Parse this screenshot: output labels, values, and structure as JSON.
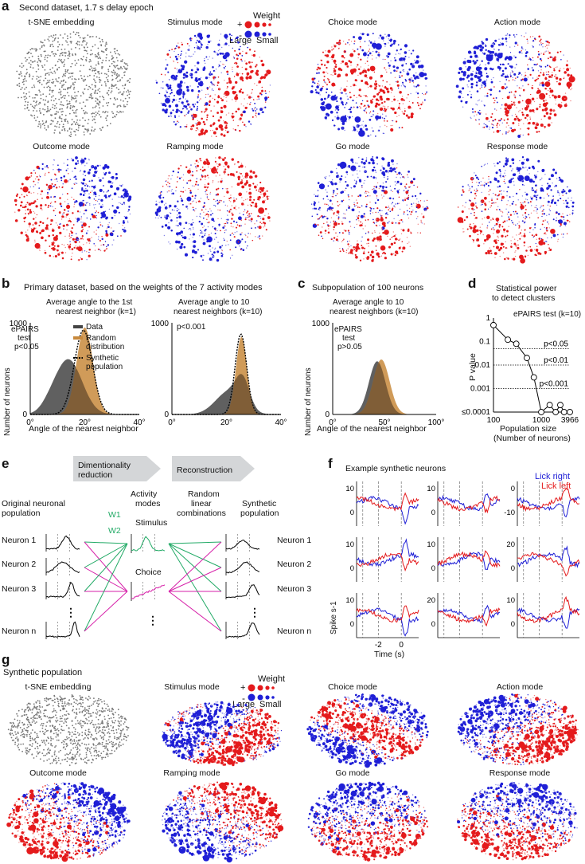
{
  "colors": {
    "red": "#e41a1c",
    "blue": "#1f1fd6",
    "gray": "#777777",
    "tan": "#c8893c",
    "dark": "#444444",
    "green": "#22aa66",
    "magenta": "#d61fa8"
  },
  "panel_a": {
    "label": "a",
    "title": "Second dataset, 1.7 s delay epoch",
    "modes": [
      "t-SNE embedding",
      "Stimulus mode",
      "Choice mode",
      "Action mode",
      "Outcome mode",
      "Ramping mode",
      "Go mode",
      "Response mode"
    ],
    "legend": {
      "title": "Weight",
      "plus": "+",
      "minus": "-",
      "large": "Large",
      "small": "Small"
    }
  },
  "panel_b": {
    "label": "b",
    "title": "Primary dataset, based on the weights of the 7 activity modes",
    "left": {
      "title1": "Average angle to the 1st",
      "title2": "nearest neighbor (k=1)",
      "test1": "ePAIRS",
      "test2": "test",
      "pval": "p<0.05"
    },
    "right": {
      "title1": "Average angle to 10",
      "title2": "nearest neighbors (k=10)",
      "pval": "p<0.001"
    },
    "ylabel": "Number of neurons",
    "xlabel": "Angle of the nearest neighbor",
    "yticks_left": [
      "0",
      "1000"
    ],
    "yticks_right": [
      "0",
      "1000"
    ],
    "xticks": [
      "0°",
      "20°",
      "40°"
    ],
    "legend": [
      "Data",
      "Random",
      "distribution",
      "Synthetic",
      "population"
    ]
  },
  "panel_c": {
    "label": "c",
    "title": "Subpopulation of 100 neurons",
    "sub1": "Average angle to 10",
    "sub2": "nearest neighbors (k=10)",
    "test1": "ePAIRS",
    "test2": "test",
    "pval": "p>0.05",
    "ylabel": "Number of neurons",
    "xlabel": "Angle of the nearest neighbor",
    "yticks": [
      "0",
      "1000"
    ],
    "xticks": [
      "0°",
      "50°",
      "100°"
    ]
  },
  "panel_d": {
    "label": "d",
    "title1": "Statistical power",
    "title2": "to detect clusters",
    "test": "ePAIRS test (k=10)",
    "ylabel": "P value",
    "xlabel1": "Population size",
    "xlabel2": "(Number of neurons)",
    "yticks": [
      "1",
      "0.1",
      "0.01",
      "0.001",
      "≤0.0001"
    ],
    "xticks": [
      "100",
      "1000",
      "3966"
    ],
    "thresholds": [
      "p<0.05",
      "p<0.01",
      "p<0.001"
    ]
  },
  "chart_data": [
    {
      "type": "line",
      "title": "Statistical power to detect clusters",
      "xlabel": "Population size (Number of neurons)",
      "ylabel": "P value",
      "log_x": true,
      "log_y": true,
      "x": [
        100,
        200,
        300,
        500,
        700,
        1000,
        1500,
        2000,
        2500,
        3000,
        3966
      ],
      "series": [
        {
          "values": [
            0.5,
            0.12,
            0.08,
            0.02,
            0.003,
            0.0001,
            0.0002,
            0.0001,
            0.0002,
            0.0001,
            0.0001
          ]
        }
      ]
    },
    {
      "type": "area",
      "title": "Average angle to the 1st nearest neighbor (k=1)",
      "xlabel": "Angle of the nearest neighbor",
      "ylabel": "Number of neurons",
      "x": [
        0,
        5,
        10,
        15,
        20,
        25,
        30,
        35,
        40
      ],
      "series": [
        {
          "name": "Data",
          "values": [
            0,
            60,
            280,
            600,
            520,
            200,
            40,
            5,
            0
          ]
        },
        {
          "name": "Random distribution",
          "values": [
            0,
            0,
            40,
            420,
            1000,
            380,
            40,
            0,
            0
          ]
        },
        {
          "name": "Synthetic population",
          "values": [
            0,
            0,
            50,
            460,
            960,
            420,
            50,
            0,
            0
          ]
        }
      ]
    }
  ],
  "panel_e": {
    "label": "e",
    "arrow1a": "Dimentionality",
    "arrow1b": "reduction",
    "arrow2": "Reconstruction",
    "orig1": "Original neuronal",
    "orig2": "population",
    "act1": "Activity",
    "act2": "modes",
    "rnd1": "Random",
    "rnd2": "linear",
    "rnd3": "combinations",
    "syn1": "Synthetic",
    "syn2": "population",
    "n1": "Neuron 1",
    "n2": "Neuron 2",
    "n3": "Neuron 3",
    "nn": "Neuron n",
    "w1": "W1",
    "w2": "W2",
    "stim": "Stimulus",
    "choice": "Choice",
    "dots": "⋮"
  },
  "panel_f": {
    "label": "f",
    "title": "Example synthetic neurons",
    "lick_right": "Lick right",
    "lick_left": "Lick left",
    "ylabel": "Spike s-1",
    "xlabel": "Time (s)",
    "xticks": [
      "-2",
      "0"
    ],
    "yticks": [
      [
        "10",
        "0"
      ],
      [
        "10",
        "0"
      ],
      [
        "0",
        "-10"
      ],
      [
        "10",
        "0"
      ],
      [
        "10",
        "0"
      ],
      [
        "20",
        "0"
      ],
      [
        "10",
        "0"
      ],
      [
        "20",
        "0"
      ],
      [
        "10",
        "0"
      ]
    ]
  },
  "panel_g": {
    "label": "g",
    "title": "Synthetic population",
    "modes": [
      "t-SNE embedding",
      "Stimulus mode",
      "Choice mode",
      "Action mode",
      "Outcome mode",
      "Ramping mode",
      "Go mode",
      "Response mode"
    ],
    "legend": {
      "title": "Weight",
      "plus": "+",
      "minus": "-",
      "large": "Large",
      "small": "Small"
    }
  }
}
